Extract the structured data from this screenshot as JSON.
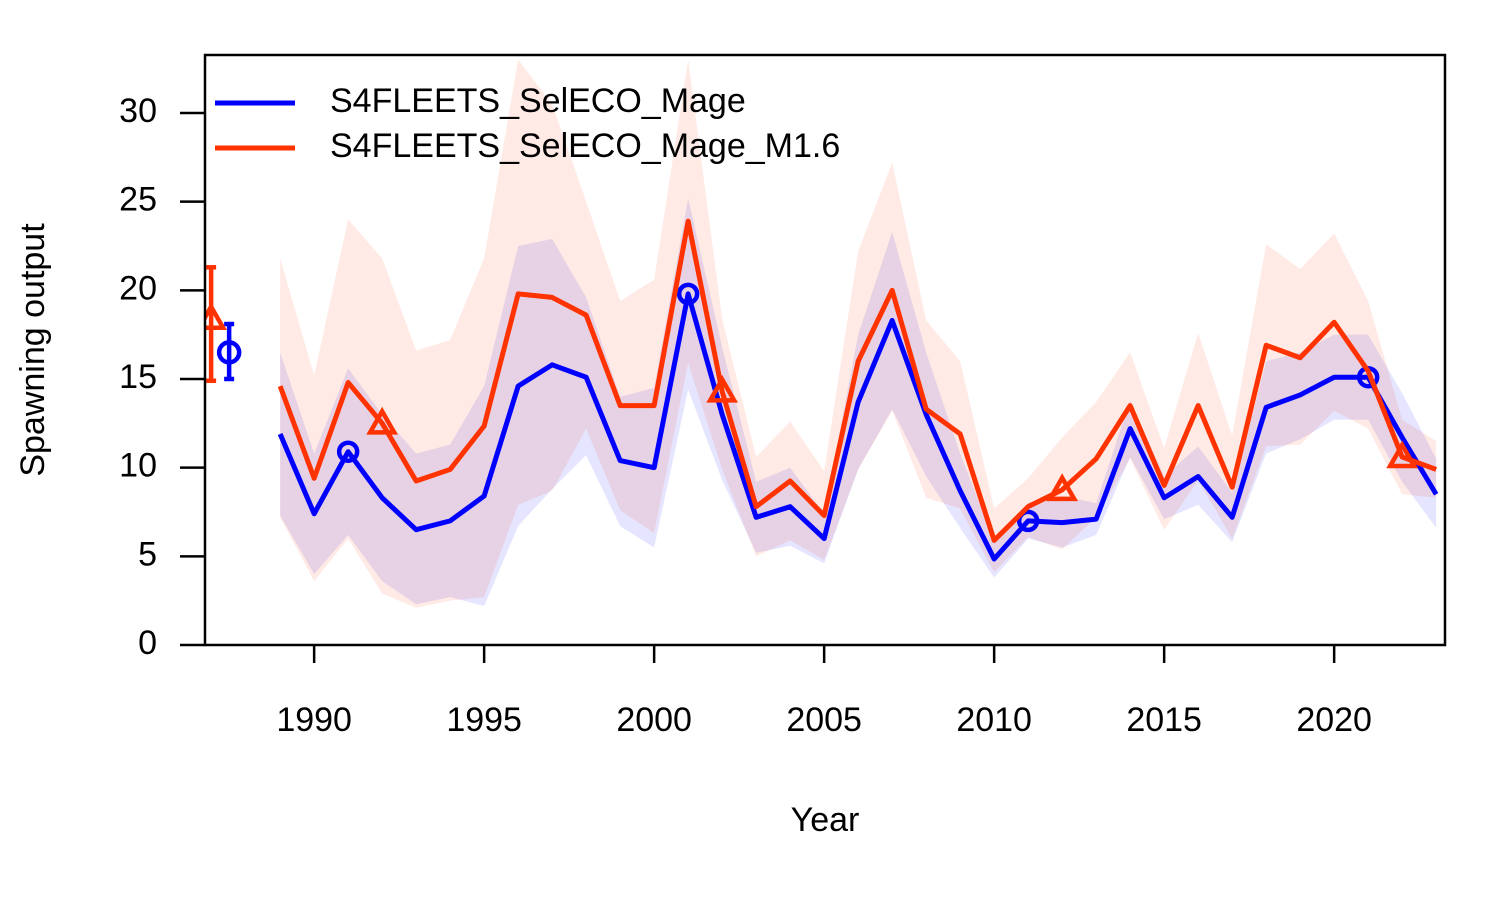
{
  "chart_data": {
    "type": "line",
    "x_label": "Year",
    "y_label": "Spawning output",
    "x": [
      1989,
      1990,
      1991,
      1992,
      1993,
      1994,
      1995,
      1996,
      1997,
      1998,
      1999,
      2000,
      2001,
      2002,
      2003,
      2004,
      2005,
      2006,
      2007,
      2008,
      2009,
      2010,
      2011,
      2012,
      2013,
      2014,
      2015,
      2016,
      2017,
      2018,
      2019,
      2020,
      2021,
      2022,
      2023
    ],
    "xlim": [
      1986.79,
      2023.26
    ],
    "xticks": [
      1990,
      1995,
      2000,
      2005,
      2010,
      2015,
      2020
    ],
    "ylim": [
      0,
      33.27
    ],
    "yticks": [
      0,
      5,
      10,
      15,
      20,
      25,
      30
    ],
    "legend": "top-left",
    "series": [
      {
        "name": "S4FLEETS_SelECO_Mage",
        "color": "#0000ff",
        "band_color": "rgba(0,0,255,0.1)",
        "marker": "circle",
        "marker_years": [
          1991,
          2001,
          2011,
          2021
        ],
        "values": [
          11.9,
          7.4,
          10.9,
          8.3,
          6.5,
          7.0,
          8.4,
          14.6,
          15.8,
          15.1,
          10.4,
          10.0,
          19.8,
          13.0,
          7.2,
          7.8,
          6.0,
          13.7,
          18.3,
          13.0,
          8.7,
          4.85,
          7.0,
          6.9,
          7.1,
          12.2,
          8.3,
          9.5,
          7.2,
          13.4,
          14.1,
          15.1,
          15.1,
          11.7,
          8.5
        ],
        "upper": [
          16.5,
          10.8,
          15.6,
          13.0,
          10.8,
          11.3,
          14.6,
          22.5,
          22.9,
          19.6,
          14.0,
          14.5,
          25.2,
          16.8,
          9.2,
          10.0,
          7.4,
          17.5,
          23.3,
          16.5,
          10.8,
          5.9,
          8.0,
          8.4,
          8.0,
          13.8,
          9.5,
          11.2,
          8.6,
          16.0,
          16.5,
          17.5,
          17.5,
          14.2,
          10.5
        ],
        "lower": [
          7.3,
          4.0,
          6.2,
          3.6,
          2.3,
          2.7,
          2.2,
          6.7,
          8.8,
          10.7,
          6.7,
          5.5,
          14.4,
          9.3,
          5.2,
          5.6,
          4.6,
          9.9,
          13.3,
          9.5,
          6.6,
          3.8,
          6.0,
          5.5,
          6.2,
          10.6,
          7.1,
          7.9,
          5.8,
          10.8,
          11.6,
          12.7,
          12.7,
          9.2,
          6.6
        ],
        "virgin": {
          "x": 1987.5,
          "value": 16.5,
          "lower": 15.0,
          "upper": 18.1
        }
      },
      {
        "name": "S4FLEETS_SelECO_Mage_M1.6",
        "color": "#ff3300",
        "band_color": "rgba(255,51,0,0.1)",
        "marker": "triangle",
        "marker_years": [
          1992,
          2002,
          2012,
          2022
        ],
        "values": [
          14.6,
          9.4,
          14.8,
          12.5,
          9.25,
          9.9,
          12.35,
          19.8,
          19.6,
          18.6,
          13.5,
          13.5,
          23.9,
          14.3,
          7.8,
          9.25,
          7.3,
          16.0,
          20.0,
          13.3,
          11.9,
          5.9,
          7.8,
          8.75,
          10.5,
          13.5,
          9.0,
          13.5,
          8.9,
          16.9,
          16.2,
          18.2,
          15.45,
          10.6,
          9.9
        ],
        "upper": [
          21.8,
          15.2,
          24.0,
          21.8,
          16.6,
          17.2,
          21.8,
          33.0,
          30.5,
          25.0,
          19.4,
          20.6,
          33.0,
          18.4,
          10.6,
          12.6,
          9.8,
          22.2,
          27.2,
          18.3,
          16.0,
          7.7,
          9.4,
          11.7,
          13.7,
          16.5,
          11.1,
          17.6,
          11.8,
          22.6,
          21.2,
          23.2,
          19.4,
          12.7,
          11.5
        ],
        "lower": [
          7.2,
          3.6,
          6.0,
          2.9,
          2.1,
          2.5,
          2.7,
          7.9,
          8.7,
          12.2,
          7.6,
          6.3,
          15.9,
          9.9,
          5.0,
          5.9,
          4.8,
          9.9,
          13.2,
          8.3,
          7.7,
          4.1,
          6.1,
          5.4,
          7.2,
          10.5,
          6.5,
          9.3,
          6.0,
          11.2,
          11.3,
          13.2,
          12.2,
          8.5,
          8.3
        ],
        "virgin": {
          "x": 1986.97,
          "value": 18.4,
          "lower": 14.9,
          "upper": 21.3
        }
      }
    ]
  }
}
